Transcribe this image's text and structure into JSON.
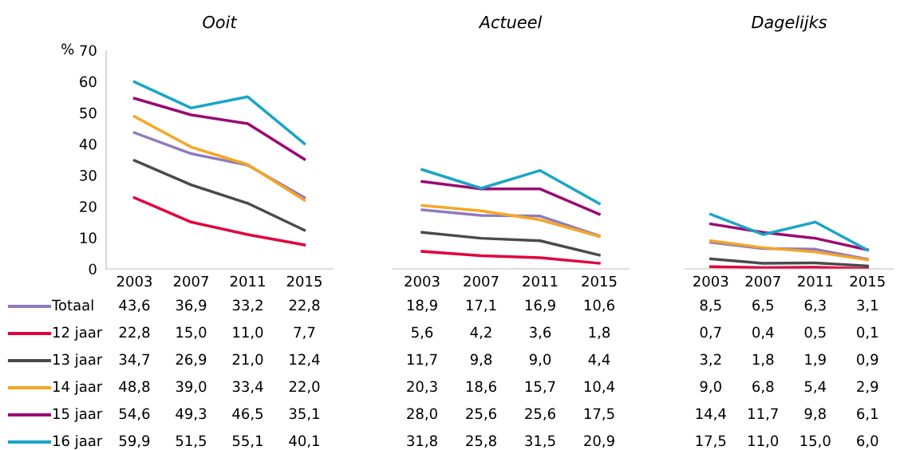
{
  "chart_data": [
    {
      "type": "line",
      "title": "Ooit",
      "ylabel": "%",
      "categories": [
        "2003",
        "2007",
        "2011",
        "2015"
      ],
      "ylim": [
        0,
        70
      ],
      "yticks": [
        0,
        10,
        20,
        30,
        40,
        50,
        60,
        70
      ],
      "legend": "bottom left",
      "series": [
        {
          "name": "Totaal",
          "color": "#8f7ac0",
          "values": [
            43.6,
            36.9,
            33.2,
            22.8
          ],
          "value_labels": [
            "43,6",
            "36,9",
            "33,2",
            "22,8"
          ]
        },
        {
          "name": "12 jaar",
          "color": "#e2003c",
          "values": [
            22.8,
            15.0,
            11.0,
            7.7
          ],
          "value_labels": [
            "22,8",
            "15,0",
            "11,0",
            "7,7"
          ]
        },
        {
          "name": "13 jaar",
          "color": "#4a4a4a",
          "values": [
            34.7,
            26.9,
            21.0,
            12.4
          ],
          "value_labels": [
            "34,7",
            "26,9",
            "21,0",
            "12,4"
          ]
        },
        {
          "name": "14 jaar",
          "color": "#f6a623",
          "values": [
            48.8,
            39.0,
            33.4,
            22.0
          ],
          "value_labels": [
            "48,8",
            "39,0",
            "33,4",
            "22,0"
          ]
        },
        {
          "name": "15 jaar",
          "color": "#9b0a72",
          "values": [
            54.6,
            49.3,
            46.5,
            35.1
          ],
          "value_labels": [
            "54,6",
            "49,3",
            "46,5",
            "35,1"
          ]
        },
        {
          "name": "16 jaar",
          "color": "#1aa5c6",
          "values": [
            59.9,
            51.5,
            55.1,
            40.1
          ],
          "value_labels": [
            "59,9",
            "51,5",
            "55,1",
            "40,1"
          ]
        }
      ]
    },
    {
      "type": "line",
      "title": "Actueel",
      "categories": [
        "2003",
        "2007",
        "2011",
        "2015"
      ],
      "ylim": [
        0,
        70
      ],
      "tick_labels": "x",
      "series": [
        {
          "color": "#8f7ac0",
          "values": [
            18.9,
            17.1,
            16.9,
            10.6
          ],
          "value_labels": [
            "18,9",
            "17,1",
            "16,9",
            "10,6"
          ]
        },
        {
          "color": "#e2003c",
          "values": [
            5.6,
            4.2,
            3.6,
            1.8
          ],
          "value_labels": [
            "5,6",
            "4,2",
            "3,6",
            "1,8"
          ]
        },
        {
          "color": "#4a4a4a",
          "values": [
            11.7,
            9.8,
            9.0,
            4.4
          ],
          "value_labels": [
            "11,7",
            "9,8",
            "9,0",
            "4,4"
          ]
        },
        {
          "color": "#f6a623",
          "values": [
            20.3,
            18.6,
            15.7,
            10.4
          ],
          "value_labels": [
            "20,3",
            "18,6",
            "15,7",
            "10,4"
          ]
        },
        {
          "color": "#9b0a72",
          "values": [
            28.0,
            25.6,
            25.6,
            17.5
          ],
          "value_labels": [
            "28,0",
            "25,6",
            "25,6",
            "17,5"
          ]
        },
        {
          "color": "#1aa5c6",
          "values": [
            31.8,
            25.8,
            31.5,
            20.9
          ],
          "value_labels": [
            "31,8",
            "25,8",
            "31,5",
            "20,9"
          ]
        }
      ]
    },
    {
      "type": "line",
      "title": "Dagelijks",
      "categories": [
        "2003",
        "2007",
        "2011",
        "2015"
      ],
      "ylim": [
        0,
        70
      ],
      "tick_labels": "x",
      "series": [
        {
          "color": "#8f7ac0",
          "values": [
            8.5,
            6.5,
            6.3,
            3.1
          ],
          "value_labels": [
            "8,5",
            "6,5",
            "6,3",
            "3,1"
          ]
        },
        {
          "color": "#e2003c",
          "values": [
            0.7,
            0.4,
            0.5,
            0.1
          ],
          "value_labels": [
            "0,7",
            "0,4",
            "0,5",
            "0,1"
          ]
        },
        {
          "color": "#4a4a4a",
          "values": [
            3.2,
            1.8,
            1.9,
            0.9
          ],
          "value_labels": [
            "3,2",
            "1,8",
            "1,9",
            "0,9"
          ]
        },
        {
          "color": "#f6a623",
          "values": [
            9.0,
            6.8,
            5.4,
            2.9
          ],
          "value_labels": [
            "9,0",
            "6,8",
            "5,4",
            "2,9"
          ]
        },
        {
          "color": "#9b0a72",
          "values": [
            14.4,
            11.7,
            9.8,
            6.1
          ],
          "value_labels": [
            "14,4",
            "11,7",
            "9,8",
            "6,1"
          ]
        },
        {
          "color": "#1aa5c6",
          "values": [
            17.5,
            11.0,
            15.0,
            6.0
          ],
          "value_labels": [
            "17,5",
            "11,0",
            "15,0",
            "6,0"
          ]
        }
      ]
    }
  ]
}
